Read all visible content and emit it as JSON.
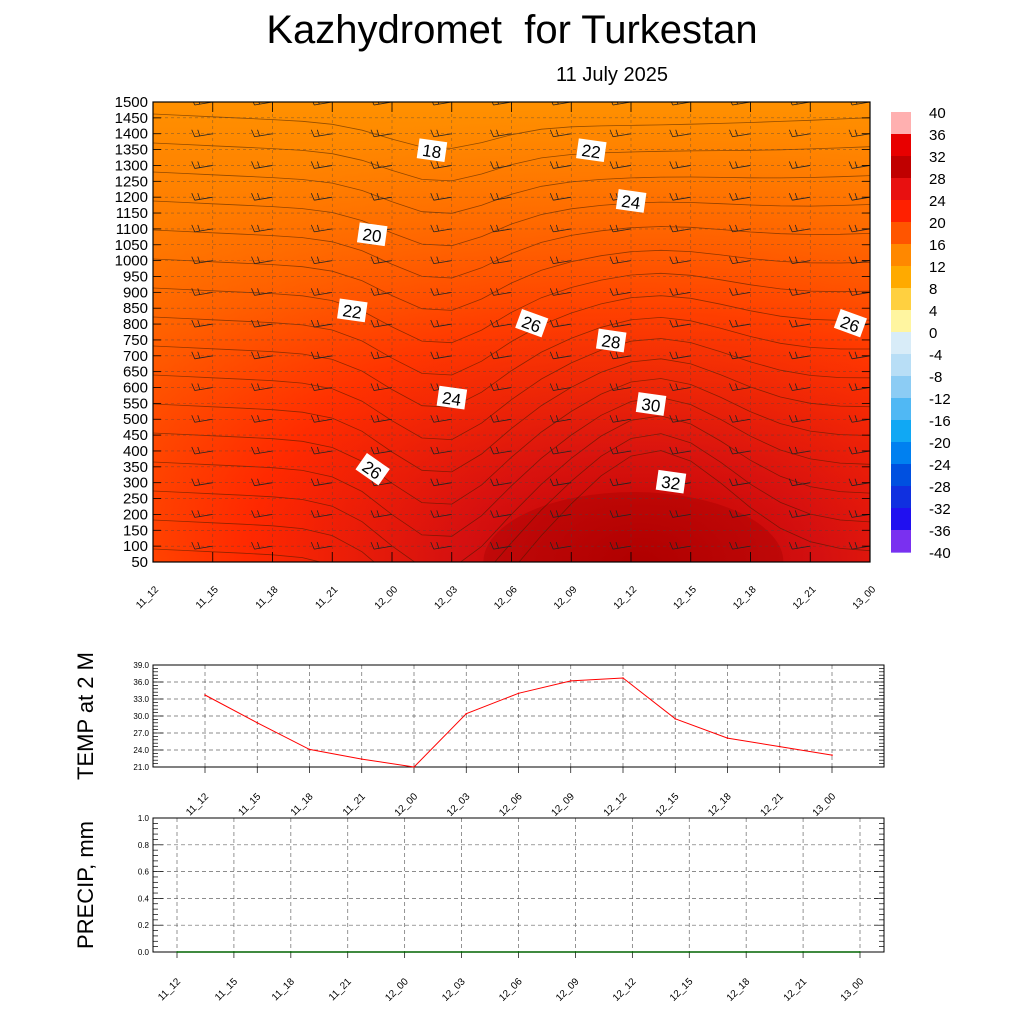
{
  "header": {
    "title": "Kazhydromet  for Turkestan",
    "subtitle": "11 July 2025"
  },
  "chart_data": [
    {
      "type": "heatmap",
      "xlabel": "",
      "ylabel": "",
      "x_ticks": [
        "11_12",
        "11_15",
        "11_18",
        "11_21",
        "12_00",
        "12_03",
        "12_06",
        "12_09",
        "12_12",
        "12_15",
        "12_18",
        "12_21",
        "13_00"
      ],
      "y_ticks": [
        1500,
        1450,
        1400,
        1350,
        1300,
        1250,
        1200,
        1150,
        1100,
        1050,
        1000,
        950,
        900,
        850,
        800,
        750,
        700,
        650,
        600,
        550,
        500,
        450,
        400,
        350,
        300,
        250,
        200,
        150,
        100,
        50
      ],
      "ylim": [
        50,
        1500
      ],
      "colorbar_ticks": [
        40,
        36,
        32,
        28,
        24,
        20,
        16,
        12,
        8,
        4,
        0,
        -4,
        -8,
        -12,
        -16,
        -20,
        -24,
        -28,
        -32,
        -36,
        -40
      ],
      "colorbar_range": [
        -40,
        40
      ],
      "contour_labels": [
        {
          "text": "18",
          "x": "12_02",
          "y": 1345
        },
        {
          "text": "20",
          "x": "11_23",
          "y": 1080
        },
        {
          "text": "22",
          "x": "11_22",
          "y": 840
        },
        {
          "text": "24",
          "x": "12_03",
          "y": 565
        },
        {
          "text": "26",
          "x": "11_23",
          "y": 340
        },
        {
          "text": "22",
          "x": "12_10",
          "y": 1345
        },
        {
          "text": "24",
          "x": "12_12",
          "y": 1185
        },
        {
          "text": "26",
          "x": "12_07",
          "y": 800
        },
        {
          "text": "28",
          "x": "12_11",
          "y": 745
        },
        {
          "text": "30",
          "x": "12_13",
          "y": 545
        },
        {
          "text": "32",
          "x": "12_14",
          "y": 300
        },
        {
          "text": "26",
          "x": "12_23",
          "y": 800
        }
      ],
      "colors": {
        "low": "#7f00ff",
        "zero": "#ffffff",
        "warm": "#ff8c00",
        "hot": "#e01010",
        "max": "#b00000"
      }
    },
    {
      "type": "line",
      "ylabel": "TEMP at 2 M",
      "x_ticks": [
        "11_12",
        "11_15",
        "11_18",
        "11_21",
        "12_00",
        "12_03",
        "12_06",
        "12_09",
        "12_12",
        "12_15",
        "12_18",
        "12_21",
        "13_00"
      ],
      "y_ticks": [
        "39.0",
        "36.0",
        "33.0",
        "30.0",
        "27.0",
        "24.0",
        "21.0"
      ],
      "ylim": [
        21,
        39
      ],
      "series": [
        {
          "values": [
            33.7,
            28.8,
            24.1,
            22.4,
            21.0,
            30.4,
            34.0,
            36.2,
            36.7,
            29.5,
            26.1,
            24.6,
            23.1
          ],
          "color": "#ff0000"
        }
      ]
    },
    {
      "type": "line",
      "ylabel": "PRECIP, mm",
      "x_ticks": [
        "11_12",
        "11_15",
        "11_18",
        "11_21",
        "12_00",
        "12_03",
        "12_06",
        "12_09",
        "12_12",
        "12_15",
        "12_18",
        "12_21",
        "13_00"
      ],
      "y_ticks": [
        "1.0",
        "0.8",
        "0.6",
        "0.4",
        "0.2",
        "0.0"
      ],
      "ylim": [
        0,
        1
      ],
      "series": [
        {
          "values": [
            0,
            0,
            0,
            0,
            0,
            0,
            0,
            0,
            0,
            0,
            0,
            0,
            0
          ],
          "color": "#006400"
        }
      ]
    }
  ]
}
